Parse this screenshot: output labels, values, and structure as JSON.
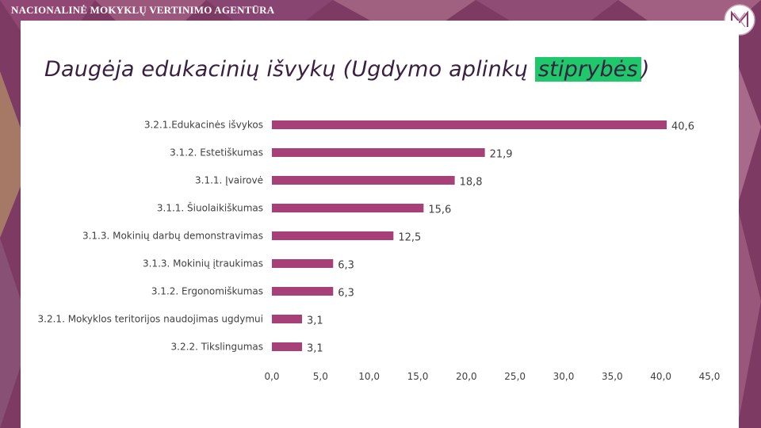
{
  "header": {
    "agency_name": "NACIONALINĖ MOKYKLŲ VERTINIMO AGENTŪRA",
    "logo_icon": "nmva-logo-icon"
  },
  "slide": {
    "title_pre": "Daugėja edukacinių išvykų (Ugdymo aplinkų ",
    "title_highlight": "stiprybės",
    "title_post": ")"
  },
  "colors": {
    "bar": "#a73f78",
    "background": "#7d3a63",
    "highlight": "#1fc86b"
  },
  "chart_data": {
    "type": "bar",
    "orientation": "horizontal",
    "title": "",
    "xlabel": "",
    "ylabel": "",
    "xlim": [
      0,
      45
    ],
    "grid": false,
    "categories": [
      "3.2.1.Edukacinės išvykos",
      "3.1.2. Estetiškumas",
      "3.1.1. Įvairovė",
      "3.1.1. Šiuolaikiškumas",
      "3.1.3. Mokinių darbų demonstravimas",
      "3.1.3. Mokinių įtraukimas",
      "3.1.2. Ergonomiškumas",
      "3.2.1. Mokyklos teritorijos naudojimas ugdymui",
      "3.2.2. Tikslingumas"
    ],
    "values": [
      40.6,
      21.9,
      18.8,
      15.6,
      12.5,
      6.3,
      6.3,
      3.1,
      3.1
    ],
    "value_labels": [
      "40,6",
      "21,9",
      "18,8",
      "15,6",
      "12,5",
      "6,3",
      "6,3",
      "3,1",
      "3,1"
    ],
    "x_ticks": [
      "0,0",
      "5,0",
      "10,0",
      "15,0",
      "20,0",
      "25,0",
      "30,0",
      "35,0",
      "40,0",
      "45,0"
    ]
  }
}
